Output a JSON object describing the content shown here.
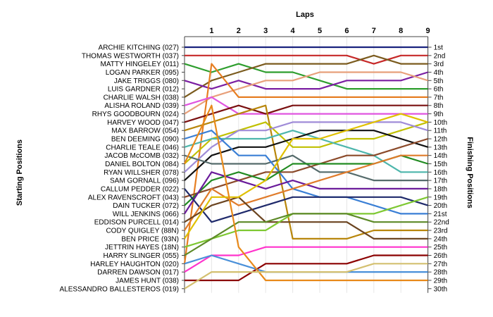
{
  "chart_data": {
    "type": "line",
    "title": "Laps",
    "ylabel_left": "Starting Positions",
    "ylabel_right": "Finishing Positions",
    "x": [
      0,
      1,
      2,
      3,
      4,
      5,
      6,
      7,
      8,
      9
    ],
    "x_tick_labels": [
      "1",
      "2",
      "3",
      "4",
      "5",
      "6",
      "7",
      "8",
      "9"
    ],
    "drivers": [
      "ARCHIE KITCHING (027)",
      "THOMAS WESTWORTH (037)",
      "MATTY HINGELEY (011)",
      "LOGAN PARKER (095)",
      "JAKE TRIGGS (080)",
      "LUIS GARDNER (012)",
      "CHARLIE WALSH (038)",
      "ALISHA ROLAND (039)",
      "RHYS GOODBOURN (024)",
      "HARVEY WOOD (047)",
      "MAX BARROW (054)",
      "BEN DEEMING (090)",
      "CHARLIE TEALE (046)",
      "JACOB McCOMB (032)",
      "DANIEL BOLTON (084)",
      "RYAN WILLSHER (078)",
      "SAM GORNALL (096)",
      "CALLUM PEDDER (022)",
      "ALEX RAVENSCROFT (043)",
      "DAIN TUCKER (072)",
      "WILL JENKINS (066)",
      "EDDISON PURCELL (014)",
      "CODY QUIGLEY (88N)",
      "BEN PRICE (93N)",
      "JETTRIN HAYES (18N)",
      "HARRY SLINGER (055)",
      "HARLEY HAUGHTON (020)",
      "DARREN DAWSON (017)",
      "JAMES HUNT (038)",
      "ALESSANDRO BALLESTEROS (019)"
    ],
    "finishing_labels": [
      "1st",
      "2nd",
      "3rd",
      "4th",
      "5th",
      "6th",
      "7th",
      "8th",
      "9th",
      "10th",
      "11th",
      "12th",
      "13th",
      "14th",
      "15th",
      "16th",
      "17th",
      "18th",
      "19th",
      "20th",
      "21st",
      "22nd",
      "23rd",
      "24th",
      "25th",
      "26th",
      "27th",
      "28th",
      "29th",
      "30th"
    ],
    "series": [
      {
        "color": "#1a237e",
        "positions": [
          1,
          1,
          1,
          1,
          1,
          1,
          1,
          1,
          1,
          1
        ]
      },
      {
        "color": "#c62828",
        "positions": [
          2,
          2,
          2,
          2,
          2,
          2,
          2,
          3,
          2,
          2
        ]
      },
      {
        "color": "#2e9e2e",
        "positions": [
          3,
          4,
          3,
          4,
          4,
          5,
          6,
          6,
          6,
          6
        ]
      },
      {
        "color": "#7b5b1e",
        "positions": [
          7,
          5,
          4,
          3,
          3,
          3,
          3,
          2,
          3,
          3
        ]
      },
      {
        "color": "#7b1fa2",
        "positions": [
          5,
          6,
          5,
          6,
          6,
          6,
          5,
          5,
          5,
          4
        ]
      },
      {
        "color": "#e8a07a",
        "positions": [
          9,
          7,
          6,
          5,
          5,
          4,
          4,
          4,
          4,
          5
        ]
      },
      {
        "color": "#e67e22",
        "positions": [
          27,
          3,
          7,
          7,
          7,
          7,
          7,
          7,
          7,
          7
        ]
      },
      {
        "color": "#e055e0",
        "positions": [
          8,
          7,
          9,
          9,
          9,
          9,
          9,
          9,
          9,
          9
        ]
      },
      {
        "color": "#7a1010",
        "positions": [
          10,
          9,
          8,
          9,
          8,
          8,
          8,
          8,
          8,
          8
        ]
      },
      {
        "color": "#b8860b",
        "positions": [
          11,
          10,
          9,
          8,
          24,
          24,
          24,
          23,
          23,
          23
        ]
      },
      {
        "color": "#c0c000",
        "positions": [
          15,
          12,
          11,
          10,
          13,
          13,
          12,
          12,
          11,
          10
        ]
      },
      {
        "color": "#a08cd8",
        "positions": [
          16,
          13,
          11,
          11,
          10,
          10,
          10,
          10,
          10,
          11
        ]
      },
      {
        "color": "#4db6ac",
        "positions": [
          13,
          12,
          12,
          12,
          11,
          12,
          13,
          14,
          16,
          16
        ]
      },
      {
        "color": "#111111",
        "positions": [
          17,
          14,
          13,
          13,
          12,
          11,
          11,
          11,
          12,
          13
        ]
      },
      {
        "color": "#556b6b",
        "positions": [
          14,
          15,
          15,
          15,
          14,
          16,
          16,
          17,
          17,
          17
        ]
      },
      {
        "color": "#3a7fd5",
        "positions": [
          12,
          11,
          14,
          14,
          18,
          19,
          19,
          20,
          21,
          21
        ]
      },
      {
        "color": "#8b4a2a",
        "positions": [
          19,
          18,
          17,
          16,
          16,
          15,
          14,
          14,
          13,
          12
        ]
      },
      {
        "color": "#228b22",
        "positions": [
          20,
          17,
          16,
          17,
          15,
          15,
          15,
          15,
          14,
          15
        ]
      },
      {
        "color": "#6a1b9a",
        "positions": [
          21,
          16,
          17,
          18,
          17,
          18,
          18,
          18,
          18,
          18
        ]
      },
      {
        "color": "#1f2a6b",
        "positions": [
          18,
          22,
          21,
          20,
          19,
          19,
          19,
          19,
          19,
          20
        ]
      },
      {
        "color": "#e07b2a",
        "positions": [
          23,
          18,
          20,
          19,
          18,
          17,
          16,
          15,
          14,
          14
        ]
      },
      {
        "color": "#6b4420",
        "positions": [
          22,
          20,
          19,
          22,
          22,
          22,
          22,
          24,
          24,
          24
        ]
      },
      {
        "color": "#e0c000",
        "positions": [
          24,
          19,
          19,
          17,
          12,
          12,
          11,
          10,
          9,
          10
        ]
      },
      {
        "color": "#7ec832",
        "positions": [
          25,
          24,
          23,
          23,
          21,
          21,
          21,
          21,
          20,
          19
        ]
      },
      {
        "color": "#5d8a28",
        "positions": [
          26,
          24,
          22,
          22,
          21,
          21,
          21,
          22,
          22,
          22
        ]
      },
      {
        "color": "#ff33cc",
        "positions": [
          28,
          26,
          26,
          25,
          25,
          25,
          25,
          25,
          25,
          25
        ]
      },
      {
        "color": "#8b0000",
        "positions": [
          29,
          29,
          29,
          27,
          27,
          27,
          27,
          26,
          26,
          26
        ]
      },
      {
        "color": "#4a90d9",
        "positions": [
          27,
          26,
          27,
          28,
          28,
          28,
          28,
          28,
          28,
          28
        ]
      },
      {
        "color": "#e8891a",
        "positions": [
          15,
          8,
          25,
          29,
          29,
          29,
          29,
          29,
          29,
          29
        ]
      },
      {
        "color": "#d4c070",
        "positions": [
          30,
          28,
          28,
          28,
          28,
          28,
          28,
          27,
          27,
          27
        ]
      }
    ]
  }
}
